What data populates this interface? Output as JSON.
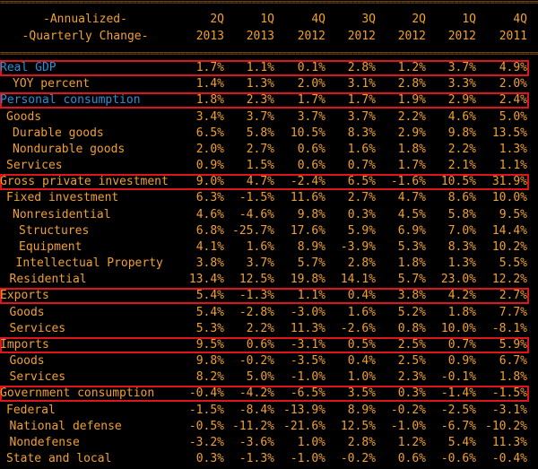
{
  "header": {
    "label_line1": "-Annualized-",
    "label_line2": "-Quarterly Change-",
    "columns": [
      {
        "q": "2Q",
        "year": "2013"
      },
      {
        "q": "1Q",
        "year": "2013"
      },
      {
        "q": "4Q",
        "year": "2012"
      },
      {
        "q": "3Q",
        "year": "2012"
      },
      {
        "q": "2Q",
        "year": "2012"
      },
      {
        "q": "1Q",
        "year": "2012"
      },
      {
        "q": "4Q",
        "year": "2011"
      }
    ]
  },
  "colors": {
    "text": "#f0a030",
    "highlight_text": "#2a8fd8",
    "box": "#e0141c",
    "background": "#000000"
  },
  "rows": [
    {
      "label": "Real GDP",
      "level": 0,
      "boxed": true,
      "blue": true,
      "values": [
        "1.7%",
        "1.1%",
        "0.1%",
        "2.8%",
        "1.2%",
        "3.7%",
        "4.9%"
      ]
    },
    {
      "label": "YOY percent",
      "level": 2,
      "values": [
        "1.4%",
        "1.3%",
        "2.0%",
        "3.1%",
        "2.8%",
        "3.3%",
        "2.0%"
      ]
    },
    {
      "label": "Personal consumption",
      "level": 0,
      "boxed": true,
      "blue": true,
      "values": [
        "1.8%",
        "2.3%",
        "1.7%",
        "1.7%",
        "1.9%",
        "2.9%",
        "2.4%"
      ]
    },
    {
      "label": "Goods",
      "level": 1,
      "values": [
        "3.4%",
        "3.7%",
        "3.7%",
        "3.7%",
        "2.2%",
        "4.6%",
        "5.0%"
      ]
    },
    {
      "label": "Durable goods",
      "level": 2,
      "values": [
        "6.5%",
        "5.8%",
        "10.5%",
        "8.3%",
        "2.9%",
        "9.8%",
        "13.5%"
      ]
    },
    {
      "label": "Nondurable goods",
      "level": 2,
      "values": [
        "2.0%",
        "2.7%",
        "0.6%",
        "1.6%",
        "1.8%",
        "2.2%",
        "1.3%"
      ]
    },
    {
      "label": "Services",
      "level": 1,
      "values": [
        "0.9%",
        "1.5%",
        "0.6%",
        "0.7%",
        "1.7%",
        "2.1%",
        "1.1%"
      ]
    },
    {
      "label": "Gross private investment",
      "level": 0,
      "boxed": true,
      "values": [
        "9.0%",
        "4.7%",
        "-2.4%",
        "6.5%",
        "-1.6%",
        "10.5%",
        "31.9%"
      ]
    },
    {
      "label": "Fixed investment",
      "level": 1,
      "values": [
        "6.3%",
        "-1.5%",
        "11.6%",
        "2.7%",
        "4.7%",
        "8.6%",
        "10.0%"
      ]
    },
    {
      "label": "Nonresidential",
      "level": 2,
      "values": [
        "4.6%",
        "-4.6%",
        "9.8%",
        "0.3%",
        "4.5%",
        "5.8%",
        "9.5%"
      ]
    },
    {
      "label": "Structures",
      "level": 3,
      "values": [
        "6.8%",
        "-25.7%",
        "17.6%",
        "5.9%",
        "6.9%",
        "7.0%",
        "14.4%"
      ]
    },
    {
      "label": "Equipment",
      "level": 3,
      "values": [
        "4.1%",
        "1.6%",
        "8.9%",
        "-3.9%",
        "5.3%",
        "8.3%",
        "10.2%"
      ]
    },
    {
      "label": "Intellectual Property",
      "level": 2.5,
      "values": [
        "3.8%",
        "3.7%",
        "5.7%",
        "2.8%",
        "1.8%",
        "1.3%",
        "5.5%"
      ]
    },
    {
      "label": "Residential",
      "level": 1.5,
      "values": [
        "13.4%",
        "12.5%",
        "19.8%",
        "14.1%",
        "5.7%",
        "23.0%",
        "12.2%"
      ]
    },
    {
      "label": "Exports",
      "level": 0,
      "boxed": true,
      "values": [
        "5.4%",
        "-1.3%",
        "1.1%",
        "0.4%",
        "3.8%",
        "4.2%",
        "2.7%"
      ]
    },
    {
      "label": "Goods",
      "level": 1.5,
      "values": [
        "5.4%",
        "-2.8%",
        "-3.0%",
        "1.6%",
        "5.2%",
        "1.8%",
        "7.7%"
      ]
    },
    {
      "label": "Services",
      "level": 1.5,
      "values": [
        "5.3%",
        "2.2%",
        "11.3%",
        "-2.6%",
        "0.8%",
        "10.0%",
        "-8.1%"
      ]
    },
    {
      "label": "Imports",
      "level": 0,
      "boxed": true,
      "values": [
        "9.5%",
        "0.6%",
        "-3.1%",
        "0.5%",
        "2.5%",
        "0.7%",
        "5.9%"
      ]
    },
    {
      "label": "Goods",
      "level": 1.5,
      "values": [
        "9.8%",
        "-0.2%",
        "-3.5%",
        "0.4%",
        "2.5%",
        "0.9%",
        "6.7%"
      ]
    },
    {
      "label": "Services",
      "level": 1.5,
      "values": [
        "8.2%",
        "5.0%",
        "-1.0%",
        "1.0%",
        "2.3%",
        "-0.1%",
        "1.8%"
      ]
    },
    {
      "label": "Government consumption",
      "level": 0,
      "boxed": true,
      "values": [
        "-0.4%",
        "-4.2%",
        "-6.5%",
        "3.5%",
        "0.3%",
        "-1.4%",
        "-1.5%"
      ]
    },
    {
      "label": "Federal",
      "level": 1,
      "values": [
        "-1.5%",
        "-8.4%",
        "-13.9%",
        "8.9%",
        "-0.2%",
        "-2.5%",
        "-3.1%"
      ]
    },
    {
      "label": "National defense",
      "level": 1.5,
      "values": [
        "-0.5%",
        "-11.2%",
        "-21.6%",
        "12.5%",
        "-1.0%",
        "-6.7%",
        "-10.2%"
      ]
    },
    {
      "label": "Nondefense",
      "level": 1.5,
      "values": [
        "-3.2%",
        "-3.6%",
        "1.0%",
        "2.8%",
        "1.2%",
        "5.4%",
        "11.3%"
      ]
    },
    {
      "label": "State and local",
      "level": 1,
      "values": [
        "0.3%",
        "-1.3%",
        "-1.0%",
        "-0.2%",
        "0.6%",
        "-0.6%",
        "-0.4%"
      ]
    }
  ]
}
